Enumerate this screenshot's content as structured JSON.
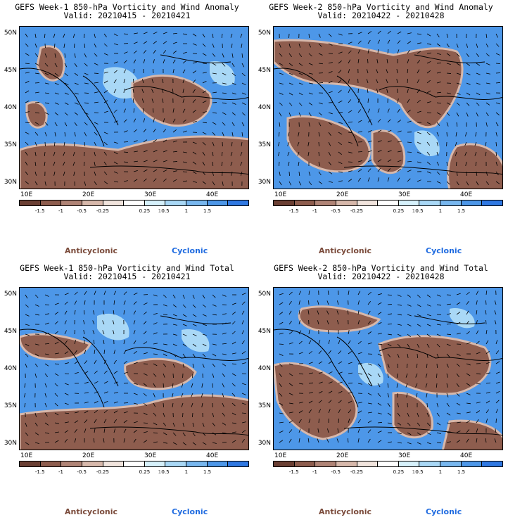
{
  "panels": [
    {
      "title1": "GEFS Week-1 850-hPa Vorticity and Wind Anomaly",
      "title2": "Valid: 20210415 - 20210421"
    },
    {
      "title1": "GEFS Week-2 850-hPa Vorticity and Wind Anomaly",
      "title2": "Valid: 20210422 - 20210428"
    },
    {
      "title1": "GEFS Week-1 850-hPa Vorticity and Wind Total",
      "title2": "Valid: 20210415 - 20210421"
    },
    {
      "title1": "GEFS Week-2 850-hPa Vorticity and Wind Total",
      "title2": "Valid: 20210422 - 20210428"
    }
  ],
  "lat_labels": [
    "50N",
    "45N",
    "40N",
    "35N",
    "30N"
  ],
  "lon_labels": [
    "10E",
    "20E",
    "30E",
    "40E"
  ],
  "colorbar": {
    "ticks": [
      "-1.5",
      "-1",
      "-0.5",
      "-0.25",
      "0.25",
      "0.5",
      "1",
      "1.5"
    ],
    "scale_marker": "10",
    "colors": [
      "#6b3f33",
      "#8e5d4e",
      "#b08476",
      "#d7b8ab",
      "#f1e4dd",
      "#ffffff",
      "#d6f1fb",
      "#a9d8f6",
      "#78b7ef",
      "#4d97e8",
      "#2f78e2"
    ]
  },
  "legend": {
    "anticyclonic": "Anticyclonic",
    "cyclonic": "Cyclonic"
  }
}
